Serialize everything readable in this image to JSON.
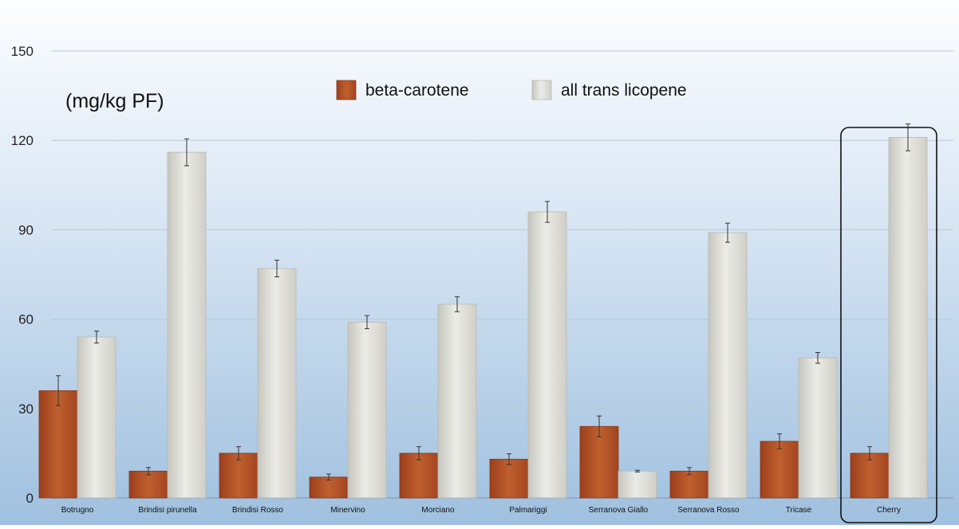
{
  "chart_data": {
    "type": "bar",
    "ylabel": "(mg/kg PF)",
    "ylim": [
      0,
      150
    ],
    "yticks": [
      0,
      30,
      60,
      90,
      120,
      150
    ],
    "grid": true,
    "legend_position": "top",
    "categories": [
      "Botrugno",
      "Brindisi pirunella",
      "Brindisi Rosso",
      "Minervino",
      "Morciano",
      "Palmariggi",
      "Serranova Giallo",
      "Serranova Rosso",
      "Tricase",
      "Cherry"
    ],
    "highlighted_category": "Cherry",
    "series": [
      {
        "name": "beta-carotene",
        "color": "#b5532a",
        "values": [
          36,
          9,
          15,
          7,
          15,
          13,
          24,
          9,
          19,
          15
        ],
        "errors": [
          5,
          1.2,
          2.2,
          1,
          2.2,
          1.8,
          3.5,
          1.2,
          2.5,
          2.2
        ]
      },
      {
        "name": "all trans licopene",
        "color": "#d9d9d2",
        "values": [
          54,
          116,
          77,
          59,
          65,
          96,
          9,
          89,
          47,
          121
        ],
        "errors": [
          2,
          4.5,
          2.8,
          2.2,
          2.5,
          3.5,
          0.3,
          3.2,
          1.8,
          4.5
        ]
      }
    ]
  }
}
